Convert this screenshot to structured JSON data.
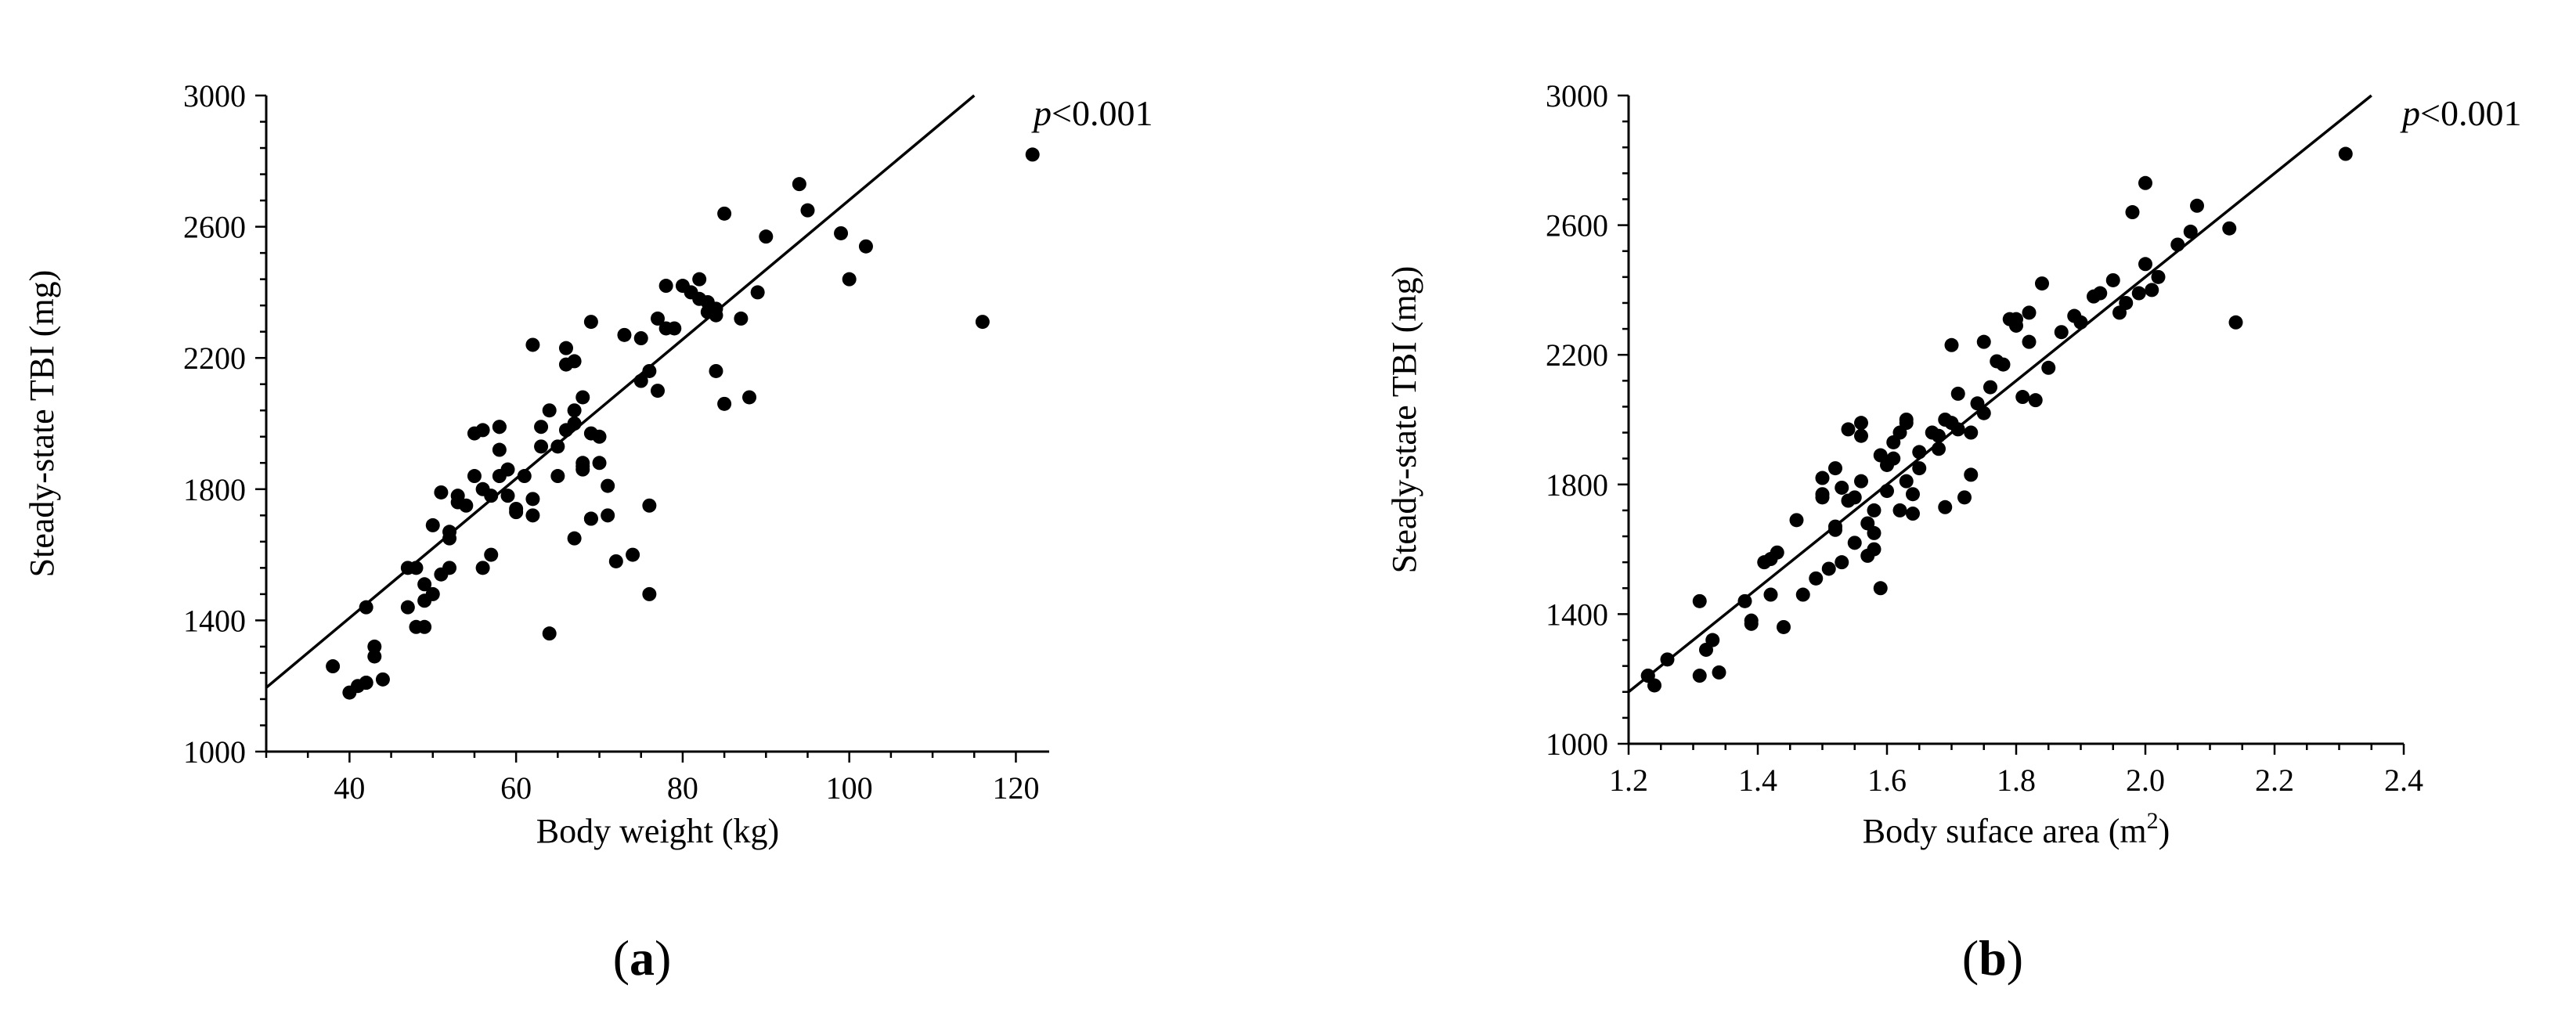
{
  "chart_data": [
    {
      "type": "scatter",
      "panel_label": "(a)",
      "xlabel": "Body weight (kg)",
      "ylabel": "Steady-state TBI (mg)",
      "xlim": [
        30,
        124
      ],
      "ylim": [
        1000,
        3000
      ],
      "xticks": [
        40,
        60,
        80,
        100,
        120
      ],
      "yticks": [
        1000,
        1400,
        1800,
        2200,
        2600,
        3000
      ],
      "annotation": {
        "italic": "p",
        "rest": "<0.001"
      },
      "trendline": {
        "x": [
          30,
          115
        ],
        "y": [
          1195,
          3000
        ]
      },
      "x": [
        38,
        40,
        41,
        42,
        43,
        43,
        42,
        44,
        42,
        47,
        48,
        48,
        49,
        49,
        50,
        51,
        51,
        52,
        52,
        53,
        53,
        47,
        49,
        50,
        52,
        54,
        55,
        55,
        56,
        56,
        56,
        57,
        57,
        58,
        58,
        58,
        58,
        59,
        59,
        60,
        60,
        61,
        62,
        62,
        62,
        63,
        63,
        64,
        64,
        65,
        65,
        66,
        66,
        66,
        67,
        67,
        67,
        67,
        68,
        68,
        68,
        68,
        69,
        69,
        69,
        69,
        70,
        70,
        71,
        71,
        72,
        73,
        74,
        75,
        75,
        76,
        76,
        76,
        77,
        77,
        78,
        78,
        79,
        80,
        81,
        82,
        82,
        83,
        83,
        84,
        84,
        84,
        85,
        85,
        87,
        88,
        89,
        90,
        94,
        95,
        99,
        100,
        102,
        116,
        122
      ],
      "y": [
        1260,
        1180,
        1200,
        1210,
        1290,
        1320,
        1440,
        1220,
        1210,
        1440,
        1560,
        1380,
        1380,
        1460,
        1690,
        1540,
        1790,
        1650,
        1670,
        1780,
        1760,
        1560,
        1510,
        1480,
        1560,
        1750,
        1970,
        1840,
        1800,
        1980,
        1560,
        1780,
        1600,
        1990,
        1990,
        1920,
        1840,
        1780,
        1860,
        1740,
        1730,
        1840,
        1770,
        1720,
        2240,
        1930,
        1990,
        1360,
        2040,
        1930,
        1840,
        1980,
        2180,
        2230,
        2000,
        2190,
        2040,
        1650,
        1860,
        1870,
        2080,
        1880,
        2310,
        1970,
        1710,
        1710,
        1960,
        1880,
        1720,
        1810,
        1580,
        2270,
        1600,
        2130,
        2260,
        1480,
        1750,
        2160,
        2100,
        2320,
        2290,
        2420,
        2290,
        2420,
        2400,
        2380,
        2440,
        2340,
        2370,
        2330,
        2350,
        2160,
        2640,
        2060,
        2320,
        2080,
        2400,
        2570,
        2730,
        2650,
        2580,
        2440,
        2540,
        2310,
        2820
      ]
    },
    {
      "type": "scatter",
      "panel_label": "(b)",
      "xlabel": {
        "text": "Body  suface area (m",
        "superscript": "2",
        "close": ")"
      },
      "ylabel": "Steady-state TBI (mg)",
      "xlim": [
        1.2,
        2.4
      ],
      "ylim": [
        1000,
        3000
      ],
      "xticks": [
        1.2,
        1.4,
        1.6,
        1.8,
        2.0,
        2.2,
        2.4
      ],
      "xtick_labels": [
        "1.2",
        "1.4",
        "1.6",
        "1.8",
        "2.0",
        "2.2",
        "2.4"
      ],
      "yticks": [
        1000,
        1400,
        1800,
        2200,
        2600,
        3000
      ],
      "annotation": {
        "italic": "p",
        "rest": "<0.001"
      },
      "trendline": {
        "x": [
          1.2,
          2.35
        ],
        "y": [
          1160,
          3000
        ]
      },
      "x": [
        1.23,
        1.24,
        1.23,
        1.26,
        1.31,
        1.32,
        1.31,
        1.33,
        1.34,
        1.38,
        1.39,
        1.39,
        1.41,
        1.42,
        1.42,
        1.43,
        1.44,
        1.46,
        1.47,
        1.49,
        1.5,
        1.5,
        1.5,
        1.51,
        1.52,
        1.52,
        1.52,
        1.53,
        1.53,
        1.54,
        1.54,
        1.55,
        1.55,
        1.56,
        1.56,
        1.56,
        1.57,
        1.57,
        1.58,
        1.58,
        1.58,
        1.59,
        1.59,
        1.6,
        1.6,
        1.61,
        1.61,
        1.62,
        1.62,
        1.63,
        1.63,
        1.63,
        1.64,
        1.64,
        1.65,
        1.65,
        1.67,
        1.68,
        1.68,
        1.69,
        1.69,
        1.7,
        1.7,
        1.71,
        1.71,
        1.72,
        1.73,
        1.73,
        1.74,
        1.75,
        1.75,
        1.76,
        1.77,
        1.78,
        1.79,
        1.8,
        1.8,
        1.81,
        1.82,
        1.82,
        1.83,
        1.84,
        1.85,
        1.87,
        1.89,
        1.9,
        1.92,
        1.93,
        1.95,
        1.96,
        1.97,
        1.98,
        1.99,
        2.0,
        2.0,
        2.01,
        2.02,
        2.05,
        2.07,
        2.08,
        2.13,
        2.14,
        2.31
      ],
      "y": [
        1210,
        1180,
        1210,
        1260,
        1440,
        1290,
        1210,
        1320,
        1220,
        1440,
        1380,
        1370,
        1560,
        1570,
        1460,
        1590,
        1360,
        1690,
        1460,
        1510,
        1770,
        1760,
        1820,
        1540,
        1660,
        1670,
        1850,
        1790,
        1560,
        1750,
        1970,
        1620,
        1760,
        1990,
        1950,
        1810,
        1680,
        1580,
        1720,
        1650,
        1600,
        1890,
        1480,
        1860,
        1780,
        1930,
        1880,
        1960,
        1720,
        1810,
        1990,
        2000,
        1710,
        1770,
        1850,
        1900,
        1960,
        1950,
        1910,
        2000,
        1730,
        2230,
        1990,
        1970,
        2080,
        1760,
        1960,
        1830,
        2050,
        2240,
        2020,
        2100,
        2180,
        2170,
        2310,
        2290,
        2310,
        2070,
        2240,
        2330,
        2060,
        2420,
        2160,
        2270,
        2320,
        2300,
        2380,
        2390,
        2430,
        2330,
        2360,
        2640,
        2390,
        2730,
        2480,
        2400,
        2440,
        2540,
        2580,
        2660,
        2590,
        2300,
        2820
      ]
    }
  ]
}
